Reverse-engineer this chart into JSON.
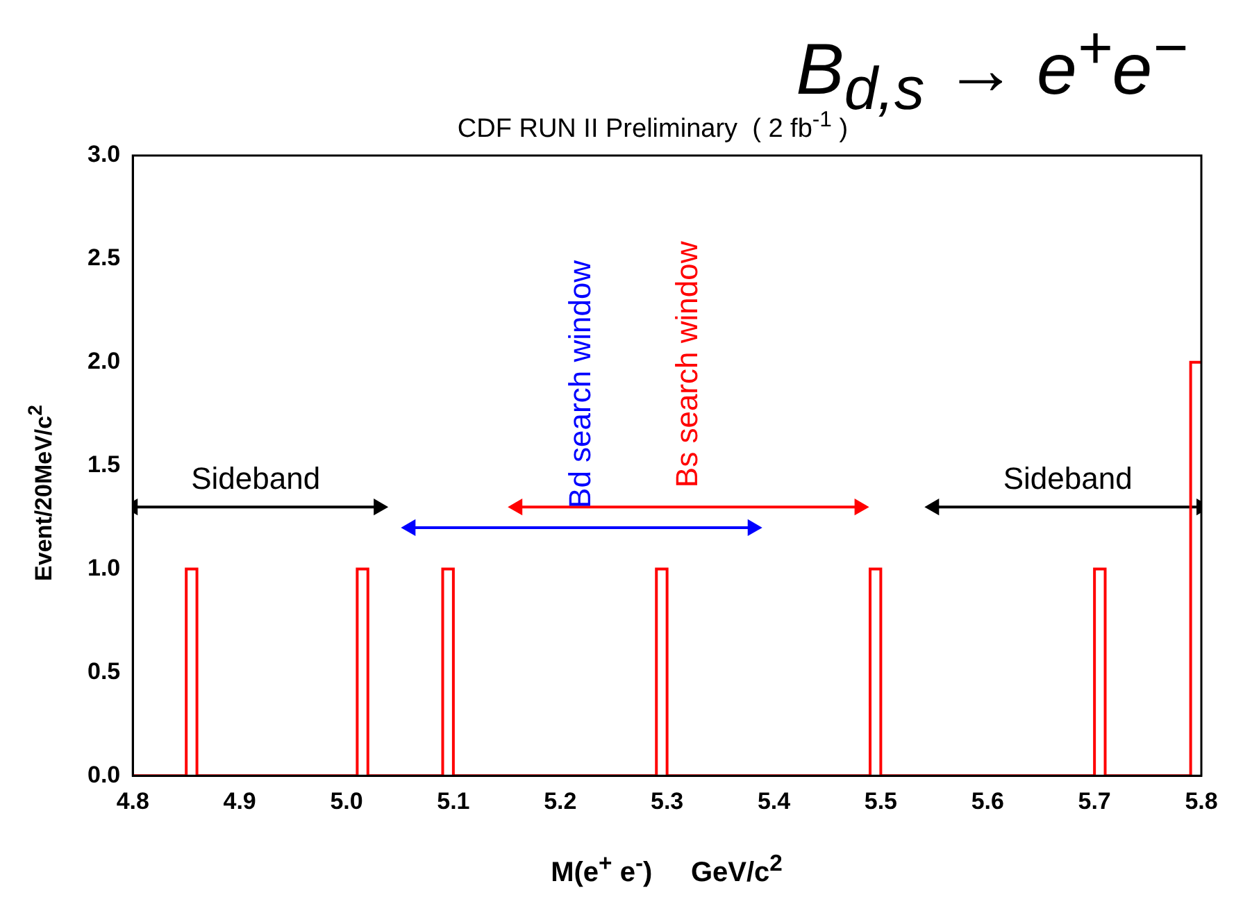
{
  "chart_data": {
    "type": "histogram",
    "title": "B$_{d,s}$ → e$^{+}$e$^{−}$",
    "subtitle": "CDF RUN II Preliminary  ( 2 fb$^{-1}$ )",
    "xlabel": "M(e$^{+}$ e$^{-}$)     GeV/c$^{2}$",
    "ylabel": "Event/20MeV/c$^{2}$",
    "bins": [
      4.8,
      4.85,
      4.86,
      5.01,
      5.02,
      5.09,
      5.1,
      5.29,
      5.3,
      5.49,
      5.5,
      5.7,
      5.71,
      5.79,
      5.8
    ],
    "values": [
      0,
      1,
      0,
      1,
      0,
      1,
      0,
      1,
      0,
      1,
      0,
      1,
      0,
      2
    ],
    "color": "#ff0000",
    "series": [
      {
        "type": "line",
        "name": "Sideband",
        "color": "#000000",
        "marker": "triangle",
        "x": [
          4.8,
          5.03
        ],
        "values": [
          1.3,
          1.3
        ]
      },
      {
        "type": "line",
        "name": "Bd search window",
        "color": "#0000ff",
        "marker": "triangle",
        "x": [
          5.06,
          5.38
        ],
        "values": [
          1.2,
          1.2
        ]
      },
      {
        "type": "line",
        "name": "Bs search window",
        "color": "#ff0000",
        "marker": "triangle",
        "x": [
          5.16,
          5.48
        ],
        "values": [
          1.3,
          1.3
        ]
      },
      {
        "type": "line",
        "name": "Sideband",
        "color": "#000000",
        "marker": "triangle",
        "x": [
          5.55,
          5.8
        ],
        "values": [
          1.3,
          1.3
        ]
      }
    ],
    "xlim": [
      4.8,
      5.8
    ],
    "xticks": [
      4.8,
      4.9,
      {
        "value": 5,
        "label": "5.0"
      },
      5.1,
      5.2,
      5.3,
      5.4,
      5.5,
      5.6,
      5.7,
      5.8
    ],
    "ylim": [
      0,
      3
    ],
    "yticks": [
      {
        "value": 0,
        "label": "0.0"
      },
      {
        "value": 0.5,
        "label": "0.5"
      },
      {
        "value": 1,
        "label": "1.0"
      },
      {
        "value": 1.5,
        "label": "1.5"
      },
      {
        "value": 2,
        "label": "2.0"
      },
      {
        "value": 2.5,
        "label": "2.5"
      },
      {
        "value": 3,
        "label": "3.0"
      }
    ],
    "grid": false,
    "legend": false
  }
}
